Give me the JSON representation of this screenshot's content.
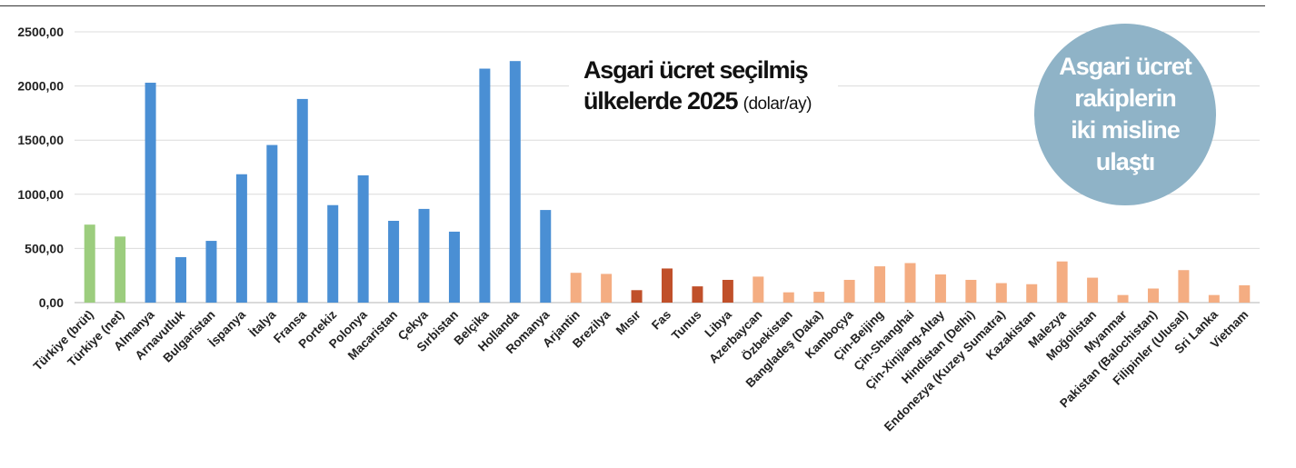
{
  "chart_data": {
    "type": "bar",
    "title": "Asgari ücret seçilmiş ülkelerde 2025",
    "title_line1": "Asgari ücret seçilmiş",
    "title_line2": "ülkelerde 2025",
    "title_unit": "(dolar/ay)",
    "ylim": [
      0,
      2500
    ],
    "yticks": [
      "0,00",
      "500,00",
      "1000,00",
      "1500,00",
      "2000,00",
      "2500,00"
    ],
    "grid": true,
    "categories": [
      "Türkiye (brüt)",
      "Türkiye (net)",
      "Almanya",
      "Arnavutluk",
      "Bulgaristan",
      "İspanya",
      "İtalya",
      "Fransa",
      "Portekiz",
      "Polonya",
      "Macaristan",
      "Çekya",
      "Sırbistan",
      "Belçika",
      "Hollanda",
      "Romanya",
      "Arjantin",
      "Brezilya",
      "Mısır",
      "Fas",
      "Tunus",
      "Libya",
      "Azerbaycan",
      "Özbekistan",
      "Bangladeş (Daka)",
      "Kamboçya",
      "Çin-Beijing",
      "Çin-Shanghai",
      "Çin-Xinjiang-Altay",
      "Hindistan (Delhi)",
      "Endonezya (Kuzey Sumatra)",
      "Kazakistan",
      "Malezya",
      "Moğolistan",
      "Myanmar",
      "Pakistan (Balochistan)",
      "Filipinler (Ulusal)",
      "Sri Lanka",
      "Vietnam"
    ],
    "values": [
      720,
      610,
      2030,
      420,
      570,
      1185,
      1455,
      1880,
      900,
      1175,
      755,
      865,
      655,
      2160,
      2230,
      855,
      275,
      265,
      115,
      315,
      150,
      210,
      240,
      95,
      100,
      210,
      335,
      365,
      260,
      210,
      180,
      170,
      380,
      230,
      70,
      130,
      300,
      70,
      160
    ],
    "groups": [
      "turkey",
      "turkey",
      "europe",
      "europe",
      "europe",
      "europe",
      "europe",
      "europe",
      "europe",
      "europe",
      "europe",
      "europe",
      "europe",
      "europe",
      "europe",
      "europe",
      "other",
      "other",
      "africa",
      "africa",
      "africa",
      "africa",
      "other",
      "other",
      "other",
      "other",
      "other",
      "other",
      "other",
      "other",
      "other",
      "other",
      "other",
      "other",
      "other",
      "other",
      "other",
      "other",
      "other"
    ],
    "colors": {
      "turkey": "#9ccd7e",
      "europe": "#4a8fd4",
      "africa": "#c0502a",
      "other": "#f4ad82"
    }
  },
  "badge": {
    "text": "Asgari ücret\nrakiplerin\niki misline\nulaştı",
    "color": "#8fb3c7"
  }
}
